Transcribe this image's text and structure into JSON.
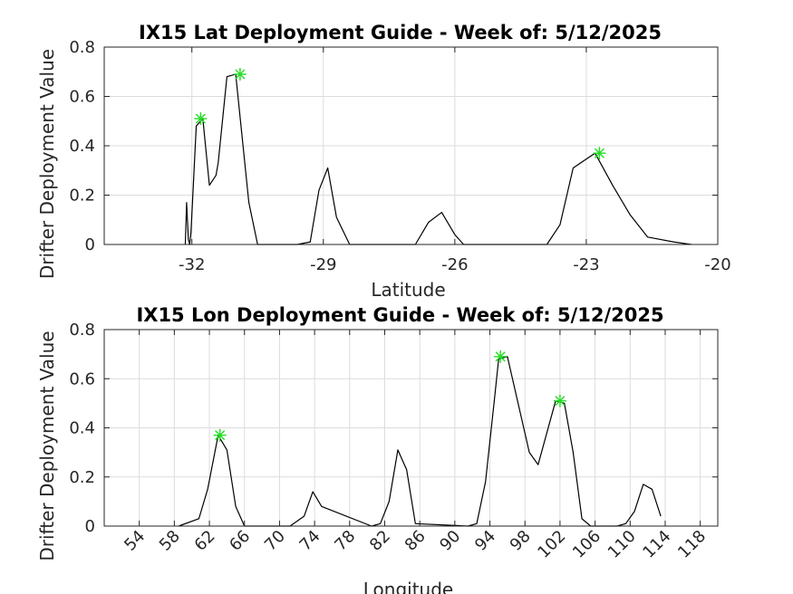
{
  "chart_data": [
    {
      "type": "line",
      "title": "IX15 Lat Deployment Guide - Week of: 5/12/2025",
      "xlabel": "Latitude",
      "ylabel": "Drifter Deployment Value",
      "xlim": [
        -34,
        -20
      ],
      "ylim": [
        0,
        0.8
      ],
      "xticks": [
        -32,
        -29,
        -26,
        -23,
        -20
      ],
      "yticks": [
        0,
        0.2,
        0.4,
        0.6,
        0.8
      ],
      "x_tick_rotation": 0,
      "grid": true,
      "line_color": "#000000",
      "marker_color": "#22dd22",
      "series": [
        {
          "x": [
            -32.15,
            -32.12,
            -32.08,
            -32.05,
            -32.02,
            -31.9,
            -31.75,
            -31.6,
            -31.45,
            -31.4,
            -31.2,
            -31.0,
            -30.7,
            -30.5,
            -30.4,
            -29.6,
            -29.3,
            -29.1,
            -28.9,
            -28.7,
            -28.4,
            -26.9,
            -26.6,
            -26.3,
            -26.0,
            -25.8,
            -23.9,
            -23.6,
            -23.3,
            -22.8,
            -22.4,
            -22.0,
            -21.6,
            -21.0,
            -20.6
          ],
          "y": [
            0,
            0.17,
            0.02,
            0.0,
            0.05,
            0.48,
            0.51,
            0.24,
            0.28,
            0.33,
            0.68,
            0.69,
            0.17,
            0.0,
            0.0,
            0.0,
            0.01,
            0.22,
            0.31,
            0.11,
            0.0,
            0.0,
            0.09,
            0.13,
            0.04,
            0.0,
            0.0,
            0.08,
            0.31,
            0.37,
            0.24,
            0.12,
            0.03,
            0.01,
            0.0
          ]
        }
      ],
      "peaks": [
        {
          "x": -31.8,
          "y": 0.51
        },
        {
          "x": -30.9,
          "y": 0.69
        },
        {
          "x": -22.7,
          "y": 0.37
        }
      ]
    },
    {
      "type": "line",
      "title": "IX15 Lon Deployment Guide - Week of: 5/12/2025",
      "xlabel": "Longitude",
      "ylabel": "Drifter Deployment Value",
      "xlim": [
        50,
        120
      ],
      "ylim": [
        0,
        0.8
      ],
      "xticks": [
        54,
        58,
        62,
        66,
        70,
        74,
        78,
        82,
        86,
        90,
        94,
        98,
        102,
        106,
        110,
        114,
        118
      ],
      "yticks": [
        0,
        0.2,
        0.4,
        0.6,
        0.8
      ],
      "x_tick_rotation": -45,
      "grid": true,
      "line_color": "#000000",
      "marker_color": "#22dd22",
      "series": [
        {
          "x": [
            58.5,
            60.8,
            61.8,
            63.0,
            64.0,
            65.0,
            66.0,
            71.2,
            72.8,
            73.8,
            74.8,
            80.5,
            81.5,
            82.5,
            83.5,
            84.5,
            85.5,
            91.5,
            92.5,
            93.5,
            94.5,
            95.0,
            96.0,
            98.5,
            99.5,
            101.5,
            102.5,
            103.5,
            104.5,
            105.5,
            108.5,
            109.5,
            110.5,
            111.5,
            112.5,
            113.5
          ],
          "y": [
            0.0,
            0.03,
            0.15,
            0.37,
            0.31,
            0.08,
            0.0,
            0.0,
            0.04,
            0.14,
            0.08,
            0.0,
            0.01,
            0.1,
            0.31,
            0.23,
            0.01,
            0.0,
            0.01,
            0.18,
            0.51,
            0.68,
            0.69,
            0.3,
            0.25,
            0.51,
            0.5,
            0.3,
            0.03,
            0.0,
            0.0,
            0.01,
            0.06,
            0.17,
            0.15,
            0.04
          ]
        }
      ],
      "peaks": [
        {
          "x": 63.2,
          "y": 0.37
        },
        {
          "x": 95.2,
          "y": 0.69
        },
        {
          "x": 102.0,
          "y": 0.51
        }
      ]
    }
  ]
}
